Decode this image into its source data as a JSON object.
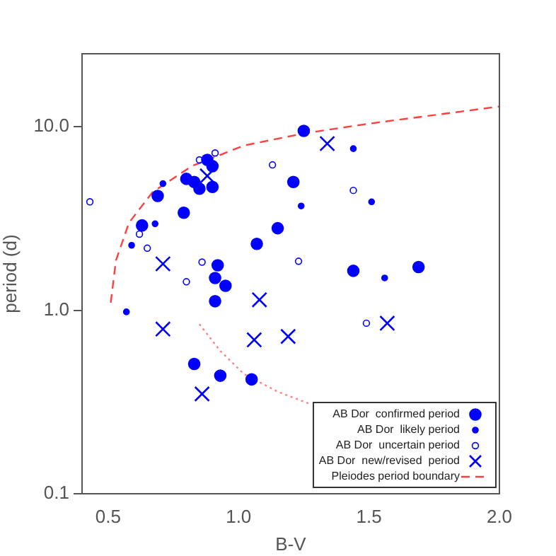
{
  "chart_data": {
    "type": "scatter",
    "xlabel": "B-V",
    "ylabel": "period (d)",
    "log": "y",
    "grid": false,
    "legend": "bottom right",
    "xlim": [
      0.4,
      2.0
    ],
    "xticks": [
      {
        "value": 0.5,
        "label": "0.5"
      },
      {
        "value": 1.0,
        "label": "1.0"
      },
      {
        "value": 1.5,
        "label": "1.5"
      },
      {
        "value": 2.0,
        "label": "2.0"
      }
    ],
    "ylim": [
      0.1,
      25
    ],
    "yticks": [
      {
        "value": 0.1,
        "label": "0.1"
      },
      {
        "value": 1.0,
        "label": "1.0"
      },
      {
        "value": 10.0,
        "label": "10.0"
      }
    ],
    "series": [
      {
        "name": "AB Dor  confirmed period",
        "marker": "circle",
        "color": "#0000ff",
        "x": [
          1.25,
          0.88,
          0.9,
          0.8,
          0.83,
          0.85,
          0.9,
          0.69,
          0.79,
          0.63,
          1.21,
          1.15,
          1.07,
          0.92,
          0.91,
          0.95,
          1.44,
          1.69,
          0.91,
          0.83,
          0.93,
          1.05
        ],
        "values": [
          9.5,
          6.6,
          6.1,
          5.2,
          5.0,
          4.6,
          4.7,
          4.2,
          3.4,
          2.9,
          5.0,
          2.8,
          2.3,
          1.76,
          1.5,
          1.36,
          1.64,
          1.72,
          1.12,
          0.51,
          0.44,
          0.42
        ]
      },
      {
        "name": "AB Dor  likely period",
        "marker": "circle",
        "color": "#0000ff",
        "x": [
          0.71,
          0.68,
          0.59,
          1.44,
          1.24,
          1.51,
          1.56,
          0.57
        ],
        "values": [
          4.9,
          2.96,
          2.26,
          7.6,
          3.7,
          3.9,
          1.5,
          0.98
        ]
      },
      {
        "name": "AB Dor  uncertain period",
        "marker": "open circle",
        "color": "#0000ff",
        "x": [
          0.91,
          0.85,
          0.43,
          0.62,
          0.65,
          0.86,
          0.8,
          1.23,
          1.13,
          1.44,
          1.49
        ],
        "values": [
          7.2,
          6.6,
          3.9,
          2.6,
          2.18,
          1.83,
          1.43,
          1.85,
          6.2,
          4.5,
          0.85
        ]
      },
      {
        "name": "AB Dor  new/revised  period",
        "marker": "cross",
        "color": "#0000ff",
        "x": [
          0.88,
          0.71,
          1.34,
          1.08,
          0.71,
          1.06,
          1.19,
          0.86,
          1.57
        ],
        "values": [
          5.4,
          1.79,
          8.1,
          1.14,
          0.79,
          0.69,
          0.72,
          0.35,
          0.85
        ]
      },
      {
        "name": "Pleiodes period boundary",
        "type": "line",
        "line_style": "dashed",
        "color": "#ff4040",
        "x": [
          0.51,
          0.53,
          0.58,
          0.67,
          0.82,
          1.02,
          1.25,
          1.5,
          2.0
        ],
        "values": [
          1.1,
          1.87,
          3.0,
          4.4,
          6.1,
          7.9,
          9.2,
          10.4,
          12.9
        ]
      },
      {
        "type": "line",
        "line_style": "dotted",
        "color": "#ff8080",
        "x": [
          0.85,
          0.93,
          1.02,
          1.15,
          1.27
        ],
        "values": [
          0.84,
          0.6,
          0.45,
          0.36,
          0.31
        ]
      }
    ]
  }
}
